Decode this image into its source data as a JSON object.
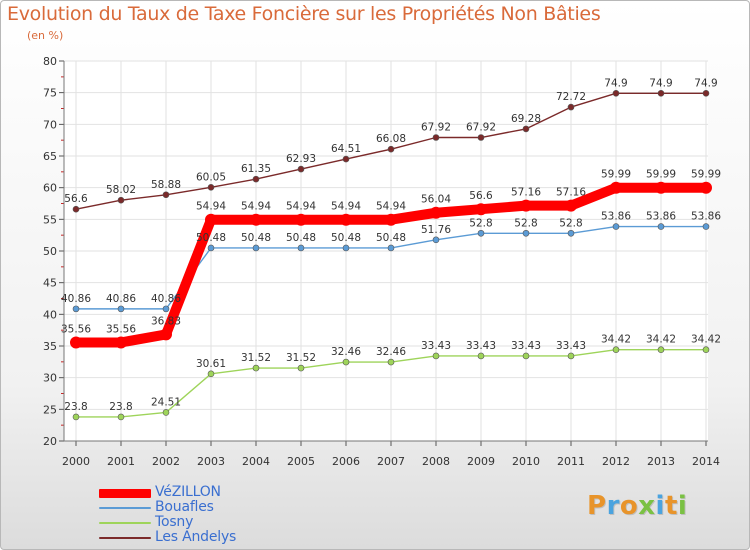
{
  "title": "Evolution du Taux de Taxe Foncière sur les Propriétés Non Bâties",
  "unit": "(en %)",
  "logo": {
    "letters": [
      "P",
      "r",
      "o",
      "x",
      "i",
      "t",
      "i"
    ],
    "colors": [
      "#e8942a",
      "#4aa3df",
      "#e8942a",
      "#7ac143",
      "#4aa3df",
      "#e8942a",
      "#7ac143"
    ]
  },
  "chart_data": {
    "type": "line",
    "title": "Evolution du Taux de Taxe Foncière sur les Propriétés Non Bâties",
    "ylabel": "(en %)",
    "xlabel": "",
    "x": [
      "2000",
      "2001",
      "2002",
      "2003",
      "2004",
      "2005",
      "2006",
      "2007",
      "2008",
      "2009",
      "2010",
      "2011",
      "2012",
      "2013",
      "2014"
    ],
    "ylim": [
      20,
      80
    ],
    "yticks": [
      "20",
      "25",
      "30",
      "35",
      "40",
      "45",
      "50",
      "55",
      "60",
      "65",
      "70",
      "75",
      "80"
    ],
    "grid": true,
    "legend_position": "bottom-left",
    "series": [
      {
        "name": "VéZILLON",
        "color": "#ff0000",
        "emphasis": true,
        "values": [
          35.56,
          35.56,
          36.83,
          54.94,
          54.94,
          54.94,
          54.94,
          54.94,
          56.04,
          56.6,
          57.16,
          57.16,
          59.99,
          59.99,
          59.99
        ],
        "labels": [
          "35.56",
          "35.56",
          "36.83",
          "54.94",
          "54.94",
          "54.94",
          "54.94",
          "54.94",
          "56.04",
          "56.6",
          "57.16",
          "57.16",
          "59.99",
          "59.99",
          "59.99"
        ]
      },
      {
        "name": "Bouafles",
        "color": "#5b9bd5",
        "values": [
          40.86,
          40.86,
          40.86,
          50.48,
          50.48,
          50.48,
          50.48,
          50.48,
          51.76,
          52.8,
          52.8,
          52.8,
          53.86,
          53.86,
          53.86
        ],
        "labels": [
          "40.86",
          "40.86",
          "40.86",
          "50.48",
          "50.48",
          "50.48",
          "50.48",
          "50.48",
          "51.76",
          "52.8",
          "52.8",
          "52.8",
          "53.86",
          "53.86",
          "53.86"
        ]
      },
      {
        "name": "Tosny",
        "color": "#9ed45a",
        "values": [
          23.8,
          23.8,
          24.51,
          30.61,
          31.52,
          31.52,
          32.46,
          32.46,
          33.43,
          33.43,
          33.43,
          33.43,
          34.42,
          34.42,
          34.42
        ],
        "labels": [
          "23.8",
          "23.8",
          "24.51",
          "30.61",
          "31.52",
          "31.52",
          "32.46",
          "32.46",
          "33.43",
          "33.43",
          "33.43",
          "33.43",
          "34.42",
          "34.42",
          "34.42"
        ]
      },
      {
        "name": "Les Andelys",
        "color": "#7b2a2a",
        "values": [
          56.6,
          58.02,
          58.88,
          60.05,
          61.35,
          62.93,
          64.51,
          66.08,
          67.92,
          67.92,
          69.28,
          72.72,
          74.9,
          74.9,
          74.9
        ],
        "labels": [
          "56.6",
          "58.02",
          "58.88",
          "60.05",
          "61.35",
          "62.93",
          "64.51",
          "66.08",
          "67.92",
          "67.92",
          "69.28",
          "72.72",
          "74.9",
          "74.9",
          "74.9"
        ]
      }
    ]
  }
}
